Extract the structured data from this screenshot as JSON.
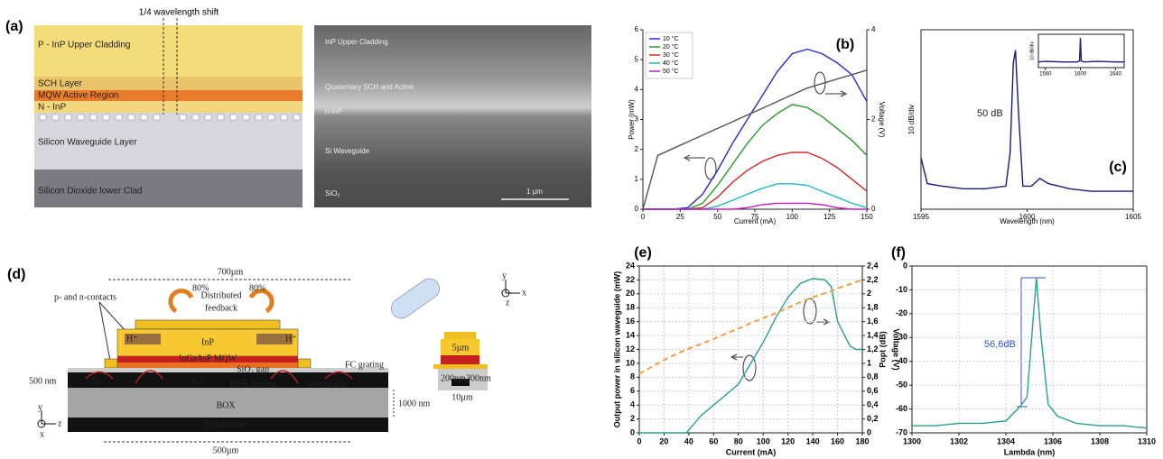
{
  "figure_a": {
    "panel_label": "(a)",
    "shift_note": "1/4 wavelength shift",
    "layers": [
      "P - InP Upper Cladding",
      "SCH Layer",
      "MQW Active Region",
      "N - InP",
      "Silicon Waveguide Layer",
      "Silicon Dioxide lower Clad"
    ],
    "sem_labels": [
      "InP Upper Cladding",
      "Quaternary SCH and Active",
      "n-InP",
      "Si Waveguide",
      "SiO₂"
    ],
    "scale_bar": "1 µm"
  },
  "figure_d": {
    "panel_label": "(d)",
    "top_length": "700µm",
    "contacts": "p- and n-contacts",
    "feedback": [
      "Distributed",
      "feedback"
    ],
    "reflect_left": "80%",
    "reflect_right": "80%",
    "h_left": "H⁺",
    "h_right": "H⁺",
    "inp": "InP",
    "mqw": "InGaAsP MQW",
    "gap": "SiO₂ gap",
    "si": "Si",
    "half_wave": "λ/2",
    "grating": "DFB grating",
    "waveguide": "waveguide",
    "fc": "FC grating",
    "si_thick": "500 nm",
    "box": "BOX",
    "box_thick": "1000 nm",
    "substrate": "Si substrate",
    "bottom_length": "500µm",
    "width_top": "5µm",
    "rib_h": "200nm",
    "rib_w": "300nm",
    "width_bottom": "10µm",
    "axes": [
      "y",
      "z",
      "x"
    ]
  },
  "chart_data": [
    {
      "type": "line",
      "panel_label": "(b)",
      "x": [
        0,
        10,
        20,
        30,
        40,
        50,
        60,
        70,
        80,
        90,
        100,
        110,
        120,
        130,
        140,
        150
      ],
      "xlim": [
        0,
        150
      ],
      "xticks": [
        0,
        25,
        50,
        75,
        100,
        125,
        150
      ],
      "ylim": [
        0,
        6
      ],
      "yticks": [
        0,
        1,
        2,
        3,
        4,
        5,
        6
      ],
      "y2lim": [
        0,
        4
      ],
      "y2ticks": [
        0,
        2,
        4
      ],
      "xlabel": "Current (mA)",
      "ylabel": "Power (mW)",
      "y2label": "Voltage (V)",
      "legend": "upper left",
      "series": [
        {
          "name": "10 °C",
          "color": "#2b2bd0",
          "values": [
            0,
            0,
            0,
            0.05,
            0.5,
            1.3,
            2.2,
            3.0,
            3.8,
            4.6,
            5.2,
            5.35,
            5.2,
            4.9,
            4.5,
            3.6
          ]
        },
        {
          "name": "20 °C",
          "color": "#2a9a2a",
          "values": [
            0,
            0,
            0,
            0,
            0.2,
            0.8,
            1.5,
            2.2,
            2.8,
            3.2,
            3.5,
            3.4,
            3.1,
            2.7,
            2.3,
            1.8
          ]
        },
        {
          "name": "30 °C",
          "color": "#d42a2a",
          "values": [
            0,
            0,
            0,
            0,
            0.05,
            0.4,
            0.9,
            1.3,
            1.6,
            1.8,
            1.9,
            1.9,
            1.7,
            1.4,
            1.0,
            0.6
          ]
        },
        {
          "name": "40 °C",
          "color": "#22b8c0",
          "values": [
            0,
            0,
            0,
            0,
            0,
            0.1,
            0.3,
            0.5,
            0.7,
            0.85,
            0.85,
            0.8,
            0.6,
            0.4,
            0.2,
            0.05
          ]
        },
        {
          "name": "50 °C",
          "color": "#c020c0",
          "values": [
            0,
            0,
            0,
            0,
            0,
            0,
            0,
            0.05,
            0.15,
            0.2,
            0.2,
            0.2,
            0.15,
            0.05,
            0,
            0
          ]
        },
        {
          "color": "#555555",
          "axis": "y2",
          "values": [
            0,
            1.2,
            1.35,
            1.5,
            1.65,
            1.8,
            1.95,
            2.1,
            2.25,
            2.4,
            2.55,
            2.7,
            2.8,
            2.9,
            3.0,
            3.1
          ]
        }
      ]
    },
    {
      "type": "line",
      "panel_label": "(c)",
      "x": [
        1595,
        1595.3,
        1596,
        1597,
        1598,
        1599,
        1599.2,
        1599.35,
        1599.45,
        1599.6,
        1599.8,
        1600.2,
        1600.6,
        1601,
        1602,
        1603,
        1604,
        1605
      ],
      "xlim": [
        1595,
        1605
      ],
      "xticks": [
        1595,
        1600,
        1605
      ],
      "ylim": [
        -62,
        8
      ],
      "xlabel": "Wavelength (nm)",
      "ylabel": "10 dB/div",
      "annotation": "50 dB",
      "series": [
        {
          "color": "#1a1a7a",
          "values": [
            -42,
            -52,
            -53,
            -54,
            -54,
            -53,
            -40,
            -5,
            0,
            -25,
            -53,
            -53,
            -50,
            -52,
            -54,
            -55,
            -55,
            -55
          ]
        }
      ]
    },
    {
      "type": "line",
      "x": [
        1552,
        1560,
        1580,
        1596,
        1599,
        1600,
        1601,
        1604,
        1620,
        1640,
        1650
      ],
      "xlim": [
        1552,
        1650
      ],
      "xticks": [
        1560,
        1600,
        1640
      ],
      "ylim": [
        -62,
        8
      ],
      "ylabel": "10 dB/div",
      "series": [
        {
          "color": "#1a1a7a",
          "values": [
            -50,
            -49,
            -50,
            -50,
            -48,
            0,
            -48,
            -50,
            -49,
            -50,
            -50
          ]
        }
      ]
    },
    {
      "type": "line",
      "panel_label": "(e)",
      "grid": true,
      "x": [
        0,
        20,
        38,
        50,
        60,
        70,
        80,
        90,
        100,
        110,
        120,
        130,
        140,
        150,
        155,
        160,
        170,
        175,
        180
      ],
      "xlim": [
        0,
        180
      ],
      "xticks": [
        0,
        20,
        40,
        60,
        80,
        100,
        120,
        140,
        160,
        180
      ],
      "ylim": [
        0,
        24
      ],
      "yticks": [
        0,
        2,
        4,
        6,
        8,
        10,
        12,
        14,
        16,
        18,
        20,
        22,
        24
      ],
      "y2lim": [
        0,
        2.4
      ],
      "y2ticks": [
        0,
        {
          "value": 0.2,
          "label": "0,2"
        },
        {
          "value": 0.4,
          "label": "0,4"
        },
        {
          "value": 0.6,
          "label": "0,6"
        },
        {
          "value": 0.8,
          "label": "0,8"
        },
        1,
        {
          "value": 1.2,
          "label": "1,2"
        },
        {
          "value": 1.4,
          "label": "1,4"
        },
        {
          "value": 1.6,
          "label": "1,6"
        },
        {
          "value": 1.8,
          "label": "1,8"
        },
        2,
        {
          "value": 2.2,
          "label": "2,2"
        },
        {
          "value": 2.4,
          "label": "2,4"
        }
      ],
      "xlabel": "Current (mA)",
      "ylabel": "Output power in silicon waveguide (mW)",
      "y2label": "Voltage (V)",
      "series": [
        {
          "color": "#2aa090",
          "values": [
            0,
            0,
            0,
            2.5,
            4,
            5.5,
            7,
            10,
            13,
            16.5,
            19.5,
            21.5,
            22.2,
            22,
            21,
            16,
            12.5,
            12,
            12
          ]
        },
        {
          "color": "#f0a040",
          "axis": "y2",
          "line_style": "dashed",
          "values": [
            0.85,
            1.05,
            1.2,
            1.28,
            1.35,
            1.43,
            1.5,
            1.58,
            1.65,
            1.72,
            1.8,
            1.88,
            1.95,
            2.01,
            2.04,
            2.08,
            2.14,
            2.17,
            2.2
          ]
        }
      ]
    },
    {
      "type": "line",
      "panel_label": "(f)",
      "grid": true,
      "x": [
        1300,
        1301,
        1302,
        1303,
        1304,
        1304.4,
        1304.6,
        1304.9,
        1305.1,
        1305.3,
        1305.5,
        1305.8,
        1306.2,
        1307,
        1308,
        1309,
        1310
      ],
      "xlim": [
        1300,
        1310
      ],
      "xticks": [
        1300,
        1302,
        1304,
        1306,
        1308,
        1310
      ],
      "ylim": [
        -70,
        0
      ],
      "yticks": [
        -70,
        -60,
        -50,
        -40,
        -30,
        -20,
        -10,
        0
      ],
      "xlabel": "Lambda (nm)",
      "ylabel": "Popt (dB)",
      "annotation": "56,6dB",
      "series": [
        {
          "color": "#2aa090",
          "values": [
            -67,
            -67,
            -66,
            -66,
            -65,
            -61,
            -59,
            -55,
            -30,
            -5,
            -30,
            -58,
            -63,
            -66,
            -67,
            -67,
            -68
          ]
        }
      ]
    }
  ]
}
